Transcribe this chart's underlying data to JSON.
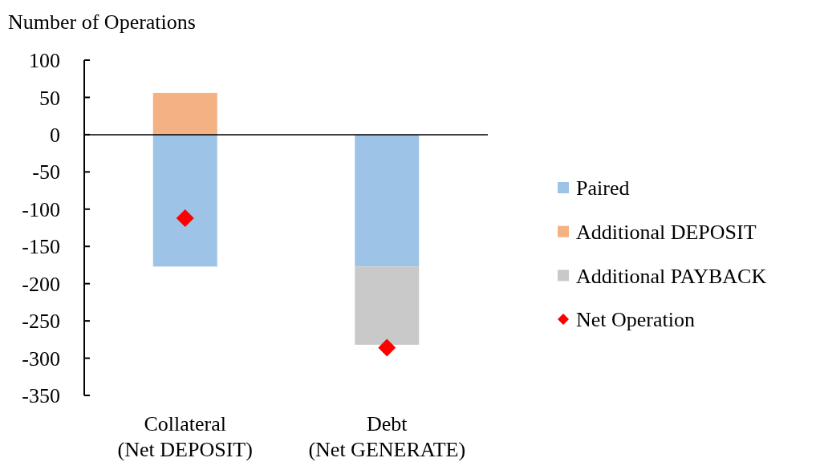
{
  "chart_data": {
    "type": "bar",
    "ylabel": "Number of Operations",
    "categories": [
      "Collateral\n(Net DEPOSIT)",
      "Debt\n(Net GENERATE)"
    ],
    "stacked": true,
    "series": [
      {
        "name": "Paired",
        "color": "#9dc3e6",
        "values": [
          -177,
          -177
        ]
      },
      {
        "name": "Additional DEPOSIT",
        "color": "#f4b183",
        "values": [
          56,
          null
        ]
      },
      {
        "name": "Additional PAYBACK",
        "color": "#c9c9c9",
        "values": [
          null,
          -105
        ]
      },
      {
        "name": "Net Operation",
        "type": "scatter",
        "color": "#ff0000",
        "marker": "diamond",
        "x": [
          "Collateral\n(Net DEPOSIT)",
          "Debt\n(Net GENERATE)"
        ],
        "values": [
          -112,
          -286
        ]
      }
    ],
    "ylim": [
      -350,
      100
    ],
    "yticks": [
      -350,
      -300,
      -250,
      -200,
      -150,
      -100,
      -50,
      0,
      50,
      100
    ],
    "legend": "right"
  }
}
